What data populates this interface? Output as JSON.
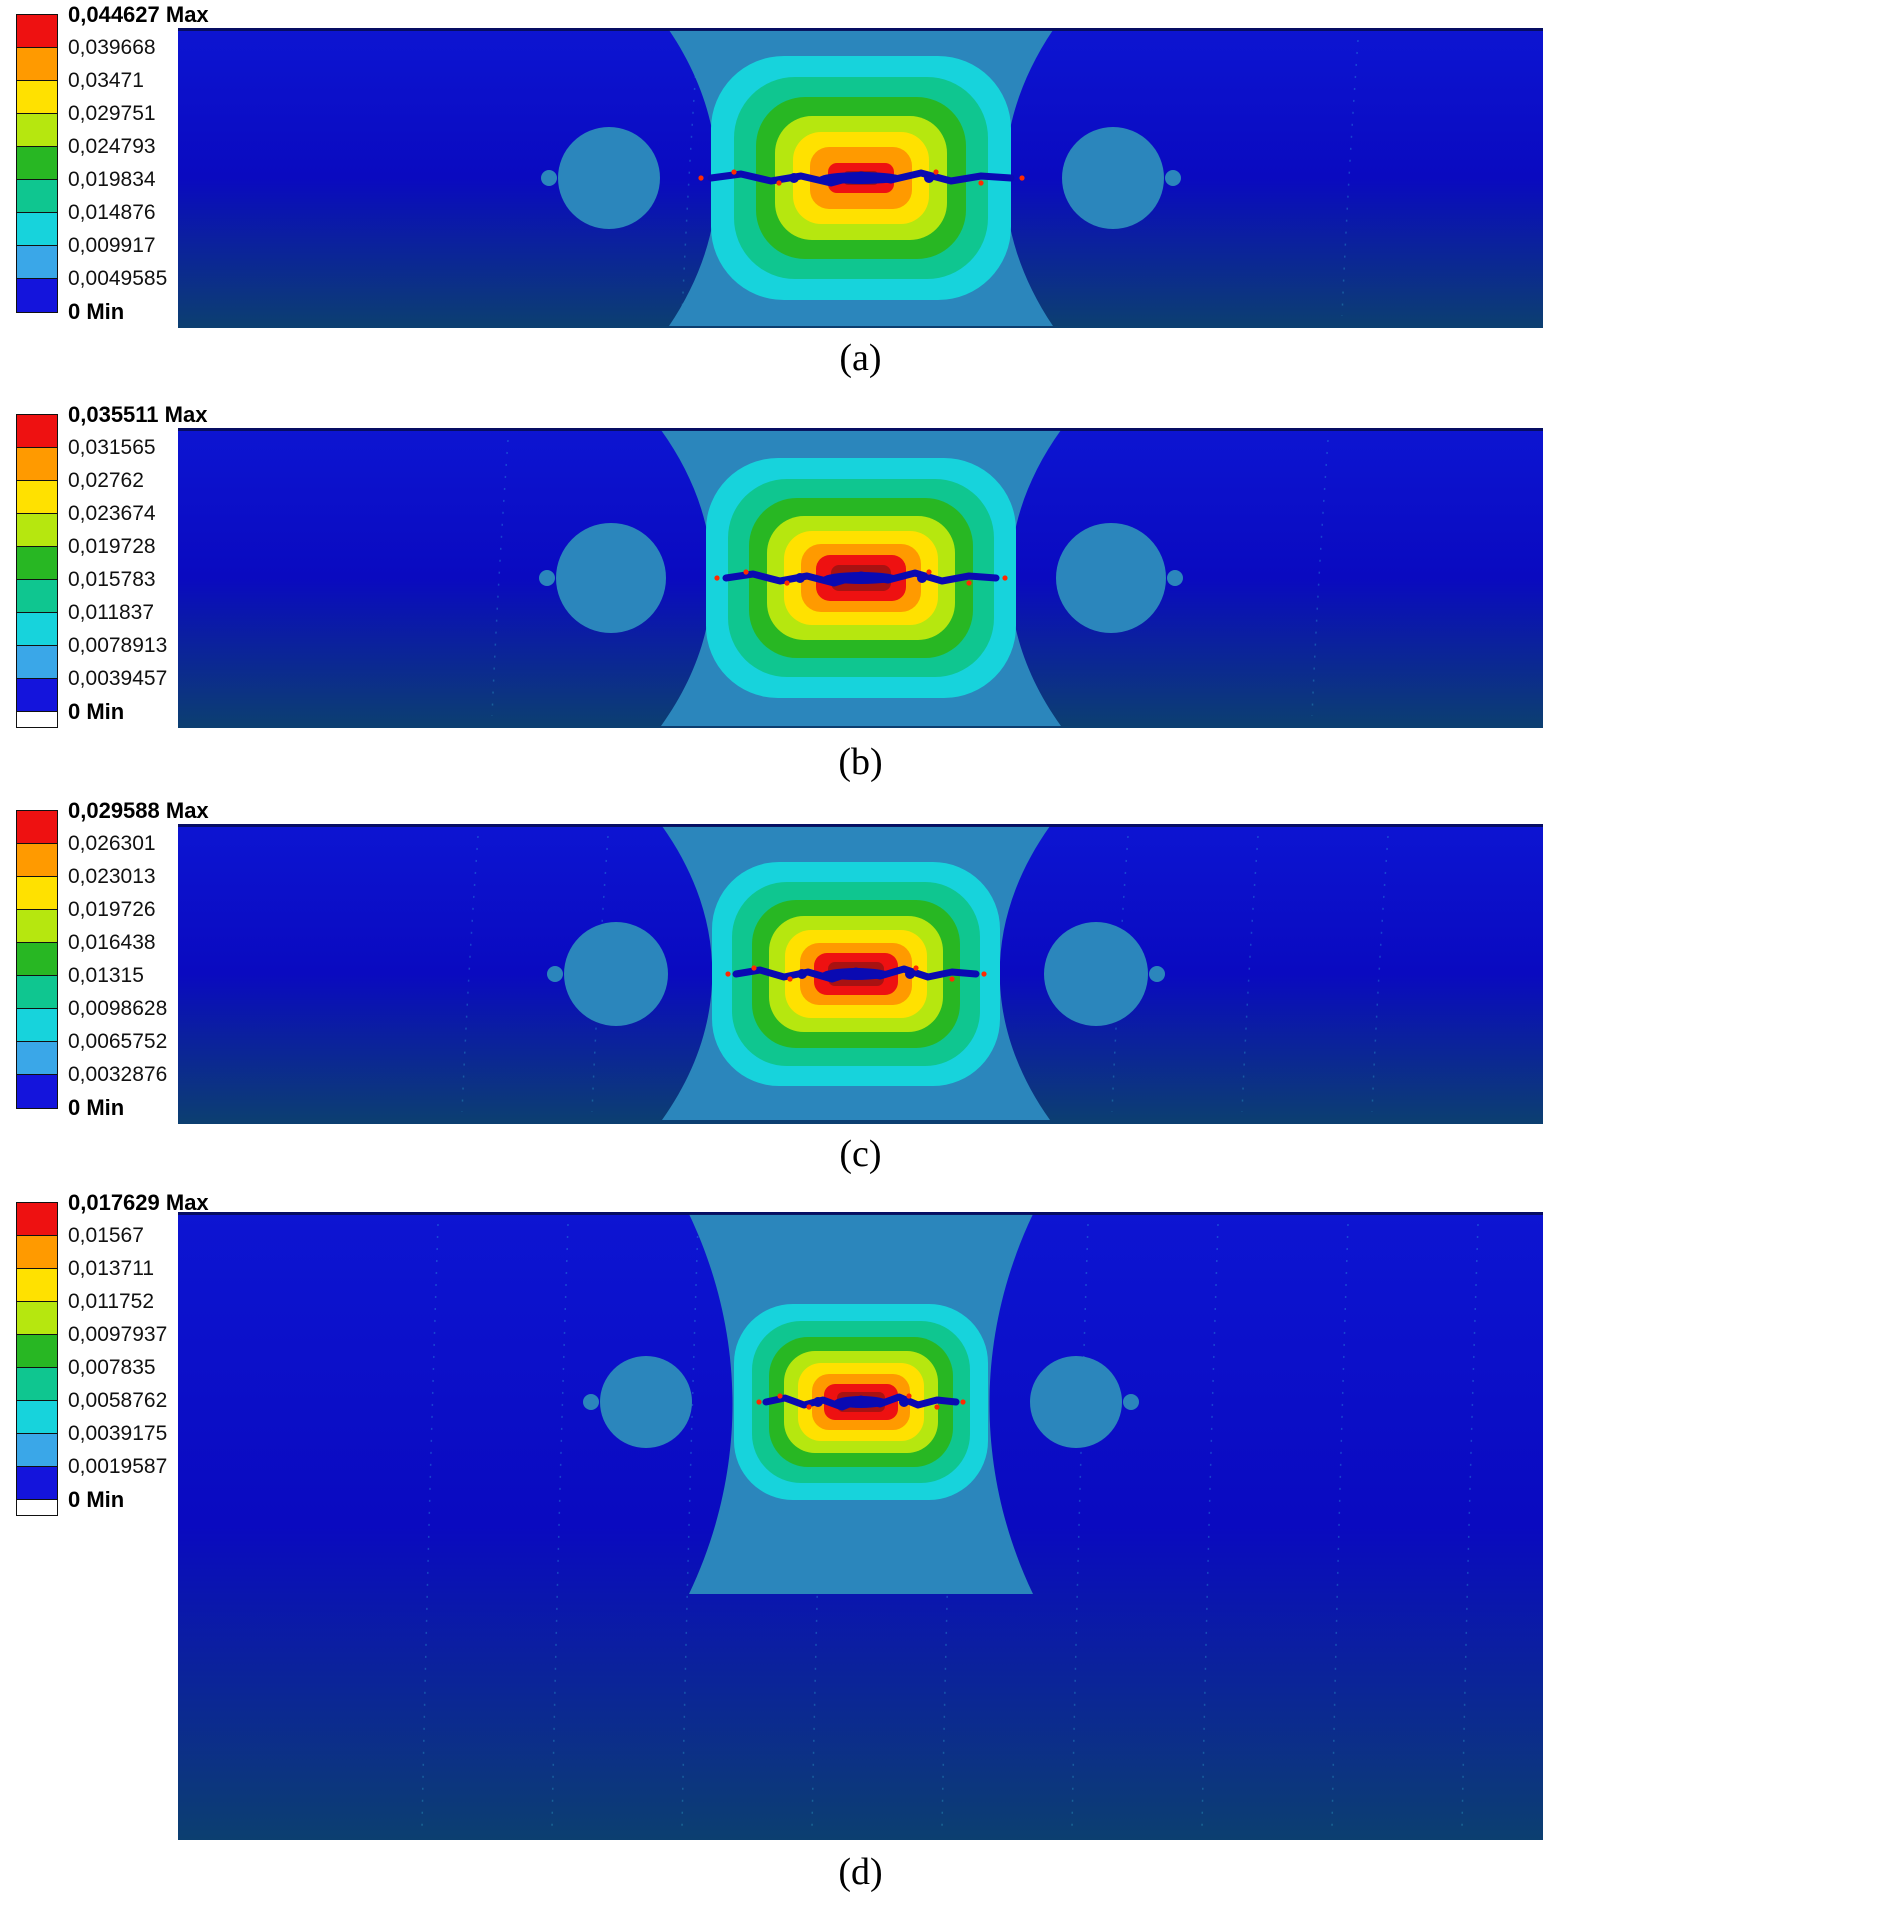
{
  "legend_band_colors": [
    "#ee1111",
    "#ff9a00",
    "#ffe100",
    "#b6e70f",
    "#28b723",
    "#0fc690",
    "#17d3dc",
    "#3aa7e8",
    "#1414dc"
  ],
  "plot_colors": {
    "background_top": "#0d15d2",
    "background_mid": "#0a0ac0",
    "background_bottom": "#0c3f70",
    "outer_lobe": "#2b86bc",
    "crack": "#0a0ab2",
    "core": "#a81212",
    "speck": "#ff2a00",
    "streak": "#38d2ea",
    "top_edge": "#060c55"
  },
  "chart_data": [
    {
      "type": "heatmap",
      "caption": "(a)",
      "value_range": [
        0,
        0.044627
      ],
      "legend_labels": [
        "0,044627 Max",
        "0,039668",
        "0,03471",
        "0,029751",
        "0,024793",
        "0,019834",
        "0,014876",
        "0,009917",
        "0,0049585",
        "0 Min"
      ],
      "legend_white_band": false
    },
    {
      "type": "heatmap",
      "caption": "(b)",
      "value_range": [
        0,
        0.035511
      ],
      "legend_labels": [
        "0,035511 Max",
        "0,031565",
        "0,02762",
        "0,023674",
        "0,019728",
        "0,015783",
        "0,011837",
        "0,0078913",
        "0,0039457",
        "0 Min"
      ],
      "legend_white_band": true
    },
    {
      "type": "heatmap",
      "caption": "(c)",
      "value_range": [
        0,
        0.029588
      ],
      "legend_labels": [
        "0,029588 Max",
        "0,026301",
        "0,023013",
        "0,019726",
        "0,016438",
        "0,01315",
        "0,0098628",
        "0,0065752",
        "0,0032876",
        "0 Min"
      ],
      "legend_white_band": false
    },
    {
      "type": "heatmap",
      "caption": "(d)",
      "value_range": [
        0,
        0.017629
      ],
      "legend_labels": [
        "0,017629 Max",
        "0,01567",
        "0,013711",
        "0,011752",
        "0,0097937",
        "0,007835",
        "0,0058762",
        "0,0039175",
        "0,0019587",
        "0 Min"
      ],
      "legend_white_band": true
    }
  ]
}
